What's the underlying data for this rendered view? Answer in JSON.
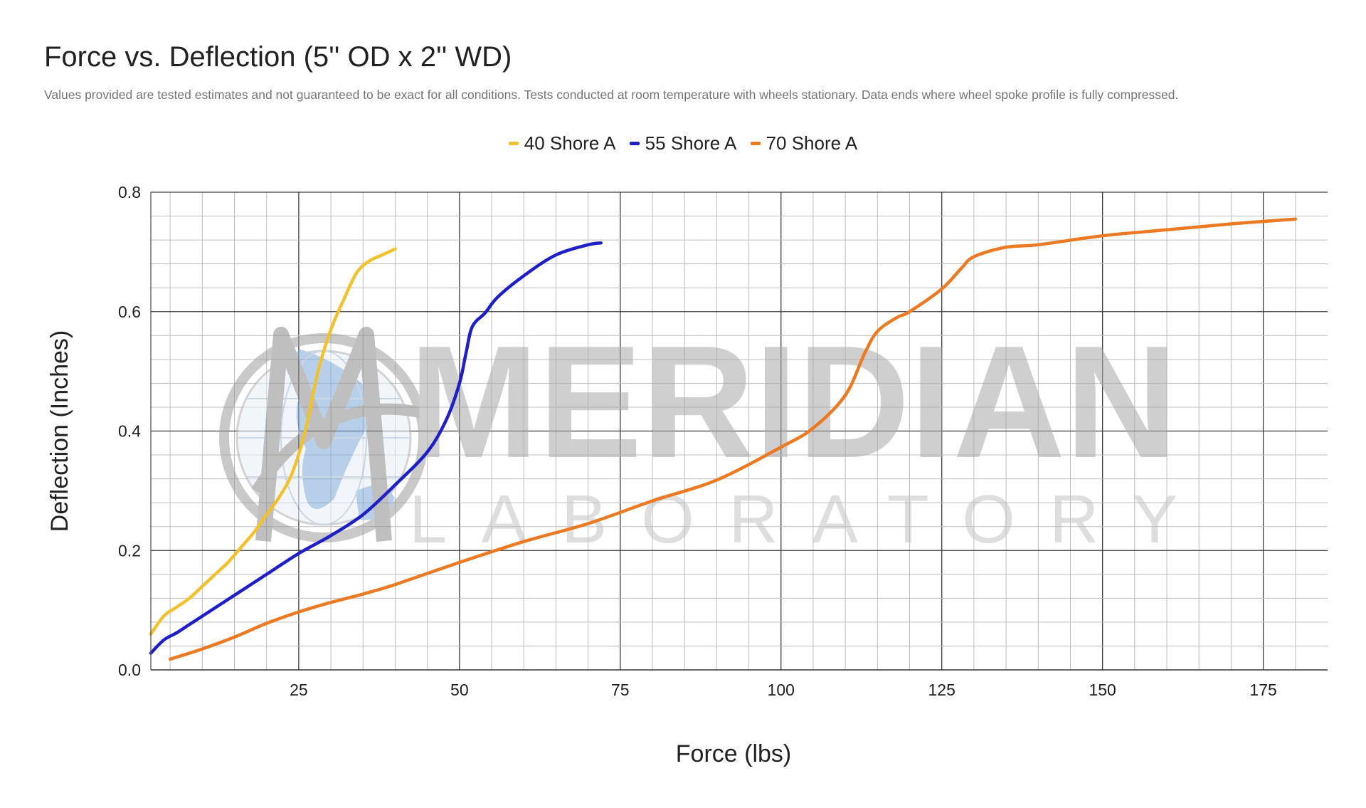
{
  "chart_data": {
    "type": "line",
    "title": "Force vs. Deflection (5'' OD x 2'' WD)",
    "subtitle": "Values provided are tested estimates and not guaranteed to be exact for all conditions. Tests conducted at room temperature with wheels stationary. Data ends where wheel spoke profile is fully compressed.",
    "xlabel": "Force (lbs)",
    "ylabel": "Deflection (Inches)",
    "xlim": [
      2,
      185
    ],
    "ylim": [
      0,
      0.8
    ],
    "x_major_ticks": [
      25,
      50,
      75,
      100,
      125,
      150,
      175
    ],
    "x_tick_labels": [
      "25",
      "50",
      "75",
      "100",
      "125",
      "150",
      "175"
    ],
    "y_major_ticks": [
      0,
      0.2,
      0.4,
      0.6,
      0.8
    ],
    "y_tick_labels": [
      "0.0",
      "0.2",
      "0.4",
      "0.6",
      "0.8"
    ],
    "grid": true,
    "legend_position": "top-center",
    "series": [
      {
        "name": "40 Shore A",
        "color": "#f2c12e",
        "points": [
          [
            2,
            0.06
          ],
          [
            4,
            0.09
          ],
          [
            6,
            0.105
          ],
          [
            8,
            0.12
          ],
          [
            10,
            0.14
          ],
          [
            12,
            0.16
          ],
          [
            14,
            0.18
          ],
          [
            16,
            0.205
          ],
          [
            18,
            0.23
          ],
          [
            20,
            0.26
          ],
          [
            22,
            0.29
          ],
          [
            24,
            0.33
          ],
          [
            26,
            0.4
          ],
          [
            28,
            0.5
          ],
          [
            30,
            0.57
          ],
          [
            32,
            0.62
          ],
          [
            34,
            0.665
          ],
          [
            36,
            0.685
          ],
          [
            38,
            0.695
          ],
          [
            40,
            0.705
          ]
        ]
      },
      {
        "name": "55 Shore A",
        "color": "#1f1fc8",
        "points": [
          [
            2,
            0.028
          ],
          [
            4,
            0.05
          ],
          [
            6,
            0.062
          ],
          [
            8,
            0.076
          ],
          [
            10,
            0.09
          ],
          [
            15,
            0.125
          ],
          [
            20,
            0.16
          ],
          [
            25,
            0.195
          ],
          [
            30,
            0.225
          ],
          [
            35,
            0.26
          ],
          [
            40,
            0.31
          ],
          [
            45,
            0.365
          ],
          [
            48,
            0.42
          ],
          [
            50,
            0.48
          ],
          [
            51,
            0.53
          ],
          [
            52,
            0.575
          ],
          [
            54,
            0.598
          ],
          [
            56,
            0.625
          ],
          [
            60,
            0.66
          ],
          [
            65,
            0.695
          ],
          [
            70,
            0.712
          ],
          [
            72,
            0.715
          ]
        ]
      },
      {
        "name": "70 Shore A",
        "color": "#ec7a23",
        "points": [
          [
            5,
            0.018
          ],
          [
            10,
            0.035
          ],
          [
            15,
            0.055
          ],
          [
            20,
            0.078
          ],
          [
            25,
            0.097
          ],
          [
            30,
            0.113
          ],
          [
            35,
            0.127
          ],
          [
            40,
            0.143
          ],
          [
            50,
            0.18
          ],
          [
            60,
            0.215
          ],
          [
            70,
            0.245
          ],
          [
            80,
            0.283
          ],
          [
            90,
            0.318
          ],
          [
            100,
            0.373
          ],
          [
            105,
            0.405
          ],
          [
            110,
            0.46
          ],
          [
            113,
            0.53
          ],
          [
            115,
            0.567
          ],
          [
            118,
            0.59
          ],
          [
            120,
            0.6
          ],
          [
            125,
            0.638
          ],
          [
            128,
            0.672
          ],
          [
            130,
            0.692
          ],
          [
            135,
            0.708
          ],
          [
            140,
            0.712
          ],
          [
            150,
            0.727
          ],
          [
            160,
            0.737
          ],
          [
            170,
            0.747
          ],
          [
            180,
            0.755
          ]
        ]
      }
    ]
  },
  "watermark": {
    "wordmark": "MERIDIAN",
    "subtitle": "LABORATORY"
  }
}
